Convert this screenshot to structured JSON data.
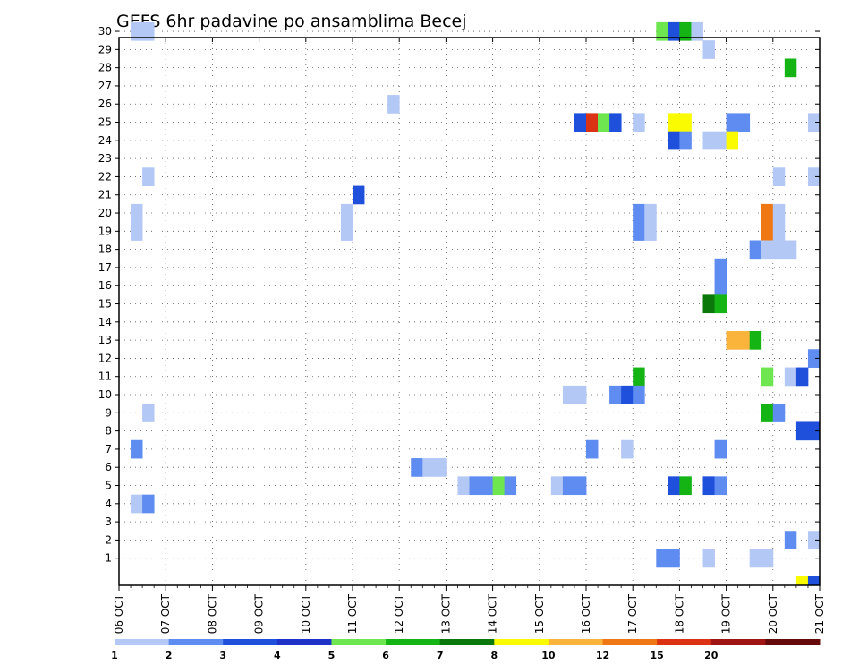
{
  "chart_data": {
    "type": "heatmap",
    "title": "GEFS 6hr padavine po ansamblima Becej",
    "y_ticks": [
      "1",
      "2",
      "3",
      "4",
      "5",
      "6",
      "7",
      "8",
      "9",
      "10",
      "11",
      "12",
      "13",
      "14",
      "15",
      "16",
      "17",
      "18",
      "19",
      "20",
      "21",
      "22",
      "23",
      "24",
      "25",
      "26",
      "27",
      "28",
      "29",
      "30"
    ],
    "x_ticks": [
      "06 OCT",
      "07 OCT",
      "08 OCT",
      "09 OCT",
      "10 OCT",
      "11 OCT",
      "12 OCT",
      "13 OCT",
      "14 OCT",
      "15 OCT",
      "16 OCT",
      "17 OCT",
      "18 OCT",
      "19 OCT",
      "20 OCT",
      "21 OCT"
    ],
    "x_range_days": [
      0,
      15
    ],
    "y_range": [
      0,
      30
    ],
    "grid": true,
    "colorbar": {
      "labels": [
        "1",
        "2",
        "3",
        "4",
        "5",
        "6",
        "7",
        "8",
        "10",
        "12",
        "15",
        "20"
      ],
      "colors": [
        "#b4c8f5",
        "#5f8cf0",
        "#1e50dc",
        "#1e32c8",
        "#6ee650",
        "#14b414",
        "#0a780a",
        "#fafa00",
        "#fab43c",
        "#f07814",
        "#dc3214",
        "#a01414",
        "#640a0a"
      ]
    },
    "cells": [
      {
        "d": 0.25,
        "m": 30,
        "c": 1
      },
      {
        "d": 0.5,
        "m": 30,
        "c": 1
      },
      {
        "d": 11.5,
        "m": 30,
        "c": 5
      },
      {
        "d": 11.75,
        "m": 30,
        "c": 3
      },
      {
        "d": 12.0,
        "m": 30,
        "c": 6
      },
      {
        "d": 12.25,
        "m": 30,
        "c": 1
      },
      {
        "d": 12.5,
        "m": 29,
        "c": 1
      },
      {
        "d": 14.25,
        "m": 28,
        "c": 6
      },
      {
        "d": 5.75,
        "m": 26,
        "c": 1
      },
      {
        "d": 9.75,
        "m": 25,
        "c": 3
      },
      {
        "d": 10.0,
        "m": 25,
        "c": 11
      },
      {
        "d": 10.25,
        "m": 25,
        "c": 5
      },
      {
        "d": 10.5,
        "m": 25,
        "c": 3
      },
      {
        "d": 11.0,
        "m": 25,
        "c": 1
      },
      {
        "d": 11.75,
        "m": 25,
        "c": 8
      },
      {
        "d": 12.0,
        "m": 25,
        "c": 8
      },
      {
        "d": 13.0,
        "m": 25,
        "c": 2
      },
      {
        "d": 13.25,
        "m": 25,
        "c": 2
      },
      {
        "d": 14.75,
        "m": 25,
        "c": 1
      },
      {
        "d": 11.75,
        "m": 24,
        "c": 3
      },
      {
        "d": 12.0,
        "m": 24,
        "c": 2
      },
      {
        "d": 12.5,
        "m": 24,
        "c": 1
      },
      {
        "d": 12.75,
        "m": 24,
        "c": 1
      },
      {
        "d": 13.0,
        "m": 24,
        "c": 8
      },
      {
        "d": 0.5,
        "m": 22,
        "c": 1
      },
      {
        "d": 14.0,
        "m": 22,
        "c": 1
      },
      {
        "d": 14.75,
        "m": 22,
        "c": 1
      },
      {
        "d": 5.0,
        "m": 21,
        "c": 3
      },
      {
        "d": 0.25,
        "m": 20,
        "c": 1
      },
      {
        "d": 4.75,
        "m": 20,
        "c": 1
      },
      {
        "d": 11.0,
        "m": 20,
        "c": 2
      },
      {
        "d": 11.25,
        "m": 20,
        "c": 1
      },
      {
        "d": 13.75,
        "m": 20,
        "c": 10
      },
      {
        "d": 14.0,
        "m": 20,
        "c": 1
      },
      {
        "d": 0.25,
        "m": 19,
        "c": 1
      },
      {
        "d": 4.75,
        "m": 19,
        "c": 1
      },
      {
        "d": 11.0,
        "m": 19,
        "c": 2
      },
      {
        "d": 11.25,
        "m": 19,
        "c": 1
      },
      {
        "d": 13.75,
        "m": 19,
        "c": 10
      },
      {
        "d": 14.0,
        "m": 19,
        "c": 1
      },
      {
        "d": 13.5,
        "m": 18,
        "c": 2
      },
      {
        "d": 13.75,
        "m": 18,
        "c": 1
      },
      {
        "d": 14.0,
        "m": 18,
        "c": 1
      },
      {
        "d": 14.25,
        "m": 18,
        "c": 1
      },
      {
        "d": 12.75,
        "m": 17,
        "c": 2
      },
      {
        "d": 12.75,
        "m": 16,
        "c": 2
      },
      {
        "d": 12.5,
        "m": 15,
        "c": 7
      },
      {
        "d": 12.75,
        "m": 15,
        "c": 6
      },
      {
        "d": 13.0,
        "m": 13,
        "c": 9
      },
      {
        "d": 13.25,
        "m": 13,
        "c": 9
      },
      {
        "d": 13.5,
        "m": 13,
        "c": 6
      },
      {
        "d": 14.75,
        "m": 12,
        "c": 2
      },
      {
        "d": 11.0,
        "m": 11,
        "c": 6
      },
      {
        "d": 13.75,
        "m": 11,
        "c": 5
      },
      {
        "d": 14.25,
        "m": 11,
        "c": 1
      },
      {
        "d": 14.5,
        "m": 11,
        "c": 3
      },
      {
        "d": 9.5,
        "m": 10,
        "c": 1
      },
      {
        "d": 9.75,
        "m": 10,
        "c": 1
      },
      {
        "d": 10.5,
        "m": 10,
        "c": 2
      },
      {
        "d": 10.75,
        "m": 10,
        "c": 3
      },
      {
        "d": 11.0,
        "m": 10,
        "c": 2
      },
      {
        "d": 0.5,
        "m": 9,
        "c": 1
      },
      {
        "d": 13.75,
        "m": 9,
        "c": 6
      },
      {
        "d": 14.0,
        "m": 9,
        "c": 2
      },
      {
        "d": 14.5,
        "m": 8,
        "c": 3
      },
      {
        "d": 14.75,
        "m": 8,
        "c": 3
      },
      {
        "d": 0.25,
        "m": 7,
        "c": 2
      },
      {
        "d": 10.0,
        "m": 7,
        "c": 2
      },
      {
        "d": 10.75,
        "m": 7,
        "c": 1
      },
      {
        "d": 12.75,
        "m": 7,
        "c": 2
      },
      {
        "d": 6.25,
        "m": 6,
        "c": 2
      },
      {
        "d": 6.5,
        "m": 6,
        "c": 1
      },
      {
        "d": 6.75,
        "m": 6,
        "c": 1
      },
      {
        "d": 7.25,
        "m": 5,
        "c": 1
      },
      {
        "d": 7.5,
        "m": 5,
        "c": 2
      },
      {
        "d": 7.75,
        "m": 5,
        "c": 2
      },
      {
        "d": 8.0,
        "m": 5,
        "c": 5
      },
      {
        "d": 8.25,
        "m": 5,
        "c": 2
      },
      {
        "d": 9.25,
        "m": 5,
        "c": 1
      },
      {
        "d": 9.5,
        "m": 5,
        "c": 2
      },
      {
        "d": 9.75,
        "m": 5,
        "c": 2
      },
      {
        "d": 11.75,
        "m": 5,
        "c": 3
      },
      {
        "d": 12.0,
        "m": 5,
        "c": 6
      },
      {
        "d": 12.5,
        "m": 5,
        "c": 3
      },
      {
        "d": 12.75,
        "m": 5,
        "c": 2
      },
      {
        "d": 0.25,
        "m": 4,
        "c": 1
      },
      {
        "d": 0.5,
        "m": 4,
        "c": 2
      },
      {
        "d": 14.25,
        "m": 2,
        "c": 2
      },
      {
        "d": 14.75,
        "m": 2,
        "c": 1
      },
      {
        "d": 11.5,
        "m": 1,
        "c": 2
      },
      {
        "d": 11.75,
        "m": 1,
        "c": 2
      },
      {
        "d": 12.5,
        "m": 1,
        "c": 1
      },
      {
        "d": 13.5,
        "m": 1,
        "c": 1
      },
      {
        "d": 13.75,
        "m": 1,
        "c": 1
      },
      {
        "d": 14.5,
        "m": 0,
        "c": 8
      },
      {
        "d": 14.75,
        "m": 0,
        "c": 3
      }
    ]
  }
}
